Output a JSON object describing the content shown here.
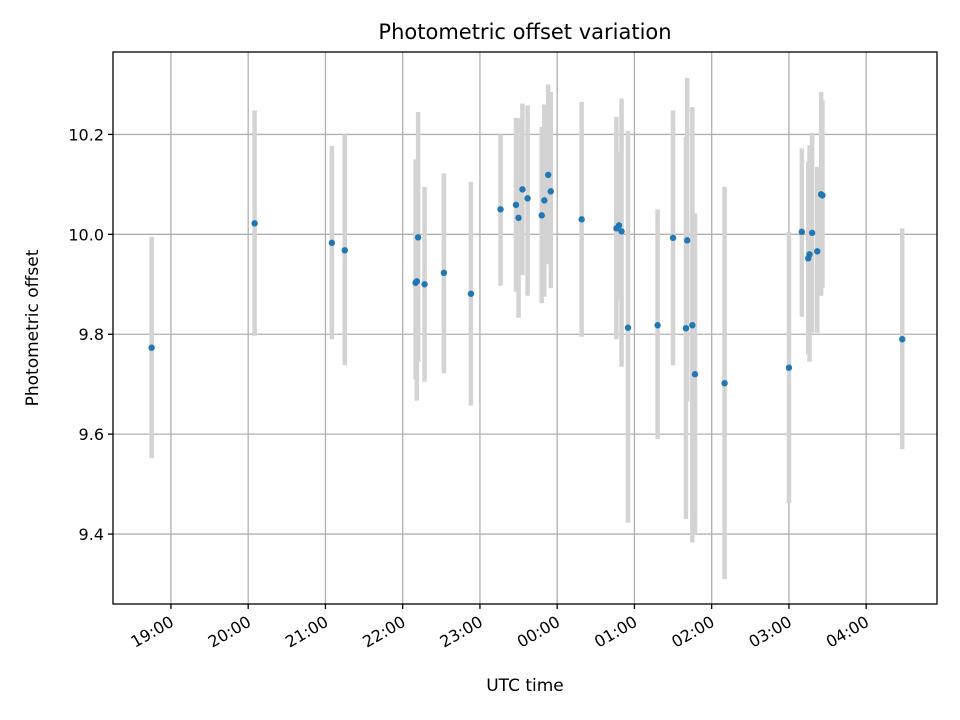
{
  "chart_data": {
    "type": "scatter",
    "title": "Photometric offset variation",
    "xlabel": "UTC time",
    "ylabel": "Photometric offset",
    "xlim": [
      "18:15",
      "04:55"
    ],
    "ylim": [
      9.26,
      10.365
    ],
    "grid": true,
    "x_ticks": [
      "19:00",
      "20:00",
      "21:00",
      "22:00",
      "23:00",
      "00:00",
      "01:00",
      "02:00",
      "03:00",
      "04:00"
    ],
    "y_ticks": [
      "9.4",
      "9.6",
      "9.8",
      "10.0",
      "10.2"
    ],
    "marker_color": "#1f77b4",
    "errorbar_color": "#d3d3d3",
    "points": [
      {
        "x": "18:45",
        "y": 9.773,
        "low": 9.552,
        "high": 9.995
      },
      {
        "x": "20:05",
        "y": 10.022,
        "low": 9.797,
        "high": 10.248
      },
      {
        "x": "21:05",
        "y": 9.983,
        "low": 9.79,
        "high": 10.177
      },
      {
        "x": "21:15",
        "y": 9.968,
        "low": 9.738,
        "high": 10.2
      },
      {
        "x": "22:10",
        "y": 9.903,
        "low": 9.71,
        "high": 10.15
      },
      {
        "x": "22:11",
        "y": 9.906,
        "low": 9.667,
        "high": 10.09
      },
      {
        "x": "22:12",
        "y": 9.994,
        "low": 9.745,
        "high": 10.245
      },
      {
        "x": "22:17",
        "y": 9.9,
        "low": 9.705,
        "high": 10.095
      },
      {
        "x": "22:32",
        "y": 9.923,
        "low": 9.722,
        "high": 10.122
      },
      {
        "x": "22:53",
        "y": 9.881,
        "low": 9.657,
        "high": 10.105
      },
      {
        "x": "23:16",
        "y": 10.05,
        "low": 9.897,
        "high": 10.2
      },
      {
        "x": "23:28",
        "y": 10.059,
        "low": 9.885,
        "high": 10.233
      },
      {
        "x": "23:30",
        "y": 10.033,
        "low": 9.833,
        "high": 10.233
      },
      {
        "x": "23:33",
        "y": 10.09,
        "low": 9.918,
        "high": 10.262
      },
      {
        "x": "23:37",
        "y": 10.072,
        "low": 9.877,
        "high": 10.258
      },
      {
        "x": "23:48",
        "y": 10.038,
        "low": 9.862,
        "high": 10.215
      },
      {
        "x": "23:50",
        "y": 10.068,
        "low": 9.875,
        "high": 10.26
      },
      {
        "x": "23:53",
        "y": 10.119,
        "low": 9.94,
        "high": 10.3
      },
      {
        "x": "23:55",
        "y": 10.086,
        "low": 9.892,
        "high": 10.285
      },
      {
        "x": "00:19",
        "y": 10.03,
        "low": 9.795,
        "high": 10.265
      },
      {
        "x": "00:46",
        "y": 10.012,
        "low": 9.79,
        "high": 10.235
      },
      {
        "x": "00:48",
        "y": 10.018,
        "low": 9.87,
        "high": 10.165
      },
      {
        "x": "00:50",
        "y": 10.006,
        "low": 9.735,
        "high": 10.272
      },
      {
        "x": "00:55",
        "y": 9.813,
        "low": 9.423,
        "high": 10.207
      },
      {
        "x": "01:18",
        "y": 9.818,
        "low": 9.59,
        "high": 10.05
      },
      {
        "x": "01:30",
        "y": 9.993,
        "low": 9.738,
        "high": 10.248
      },
      {
        "x": "01:40",
        "y": 9.812,
        "low": 9.43,
        "high": 10.195
      },
      {
        "x": "01:41",
        "y": 9.988,
        "low": 9.665,
        "high": 10.313
      },
      {
        "x": "01:45",
        "y": 9.818,
        "low": 9.383,
        "high": 10.255
      },
      {
        "x": "01:47",
        "y": 9.72,
        "low": 9.398,
        "high": 10.042
      },
      {
        "x": "02:10",
        "y": 9.702,
        "low": 9.31,
        "high": 10.095
      },
      {
        "x": "03:00",
        "y": 9.733,
        "low": 9.462,
        "high": 10.005
      },
      {
        "x": "03:10",
        "y": 10.005,
        "low": 9.835,
        "high": 10.172
      },
      {
        "x": "03:15",
        "y": 9.952,
        "low": 9.76,
        "high": 10.145
      },
      {
        "x": "03:16",
        "y": 9.96,
        "low": 9.745,
        "high": 10.178
      },
      {
        "x": "03:18",
        "y": 10.003,
        "low": 9.803,
        "high": 10.203
      },
      {
        "x": "03:22",
        "y": 9.966,
        "low": 9.803,
        "high": 10.135
      },
      {
        "x": "03:25",
        "y": 10.08,
        "low": 9.877,
        "high": 10.285
      },
      {
        "x": "03:26",
        "y": 10.078,
        "low": 9.893,
        "high": 10.268
      },
      {
        "x": "04:28",
        "y": 9.79,
        "low": 9.57,
        "high": 10.012
      }
    ]
  }
}
